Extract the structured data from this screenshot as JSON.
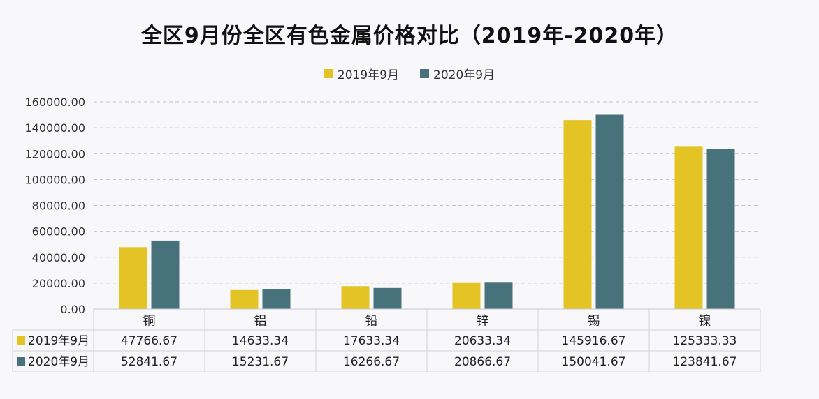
{
  "title": "全区9月份全区有色金属价格对比（2019年-2020年）",
  "colors": {
    "series1": "#e3c424",
    "series2": "#48727b"
  },
  "chart_data": {
    "type": "bar",
    "categories": [
      "铜",
      "铝",
      "铅",
      "锌",
      "锡",
      "镍"
    ],
    "series": [
      {
        "name": "2019年9月",
        "values": [
          47766.67,
          14633.34,
          17633.34,
          20633.34,
          145916.67,
          125333.33
        ],
        "labels": [
          "47766.67",
          "14633.34",
          "17633.34",
          "20633.34",
          "145916.67",
          "125333.33"
        ]
      },
      {
        "name": "2020年9月",
        "values": [
          52841.67,
          15231.67,
          16266.67,
          20866.67,
          150041.67,
          123841.67
        ],
        "labels": [
          "52841.67",
          "15231.67",
          "16266.67",
          "20866.67",
          "150041.67",
          "123841.67"
        ]
      }
    ],
    "yticks": [
      "0.00",
      "20000.00",
      "40000.00",
      "60000.00",
      "80000.00",
      "100000.00",
      "120000.00",
      "140000.00",
      "160000.00"
    ],
    "ylim": [
      0,
      160000
    ],
    "grid": "dashed horizontal",
    "legend": "top-center",
    "data_table": true
  }
}
